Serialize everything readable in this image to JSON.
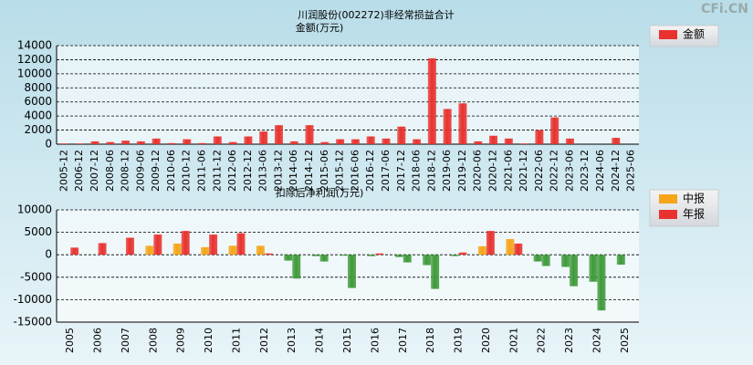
{
  "watermark": "CFi.CN",
  "chart_data": [
    {
      "type": "bar",
      "title": "川润股份(002272)非经常损益合计",
      "y_label": "金额(万元)",
      "categories": [
        "2005-12",
        "2006-12",
        "2007-12",
        "2008-06",
        "2008-12",
        "2009-06",
        "2009-12",
        "2010-06",
        "2010-12",
        "2011-06",
        "2011-12",
        "2012-06",
        "2012-12",
        "2013-06",
        "2013-12",
        "2014-06",
        "2014-12",
        "2015-06",
        "2015-12",
        "2016-06",
        "2016-12",
        "2017-06",
        "2017-12",
        "2018-06",
        "2018-12",
        "2019-06",
        "2019-12",
        "2020-06",
        "2020-12",
        "2021-06",
        "2021-12",
        "2022-06",
        "2022-12",
        "2023-06",
        "2023-12",
        "2024-06",
        "2024-12",
        "2025-06"
      ],
      "series": [
        {
          "name": "金额",
          "color": "#e8322e",
          "values": [
            100,
            100,
            400,
            300,
            500,
            400,
            800,
            150,
            700,
            150,
            1100,
            300,
            1100,
            1800,
            2700,
            400,
            2700,
            300,
            700,
            700,
            1100,
            800,
            2500,
            700,
            12200,
            5000,
            5800,
            400,
            1200,
            800,
            100,
            2000,
            3800,
            800,
            0,
            0,
            900,
            0
          ]
        }
      ],
      "ylim": [
        0,
        14000
      ],
      "yticks": [
        0,
        2000,
        4000,
        6000,
        8000,
        10000,
        12000,
        14000
      ],
      "grid": true,
      "legend": "right"
    },
    {
      "type": "bar",
      "title": "扣除后净利润(万元)",
      "categories": [
        "2005",
        "2006",
        "2007",
        "2008",
        "2009",
        "2010",
        "2011",
        "2012",
        "2013",
        "2014",
        "2015",
        "2016",
        "2017",
        "2018",
        "2019",
        "2020",
        "2021",
        "2022",
        "2023",
        "2024",
        "2025"
      ],
      "series": [
        {
          "name": "中报",
          "color": "#f5a517",
          "values": [
            null,
            null,
            null,
            2000,
            2500,
            1700,
            2000,
            2000,
            -1300,
            -300,
            -200,
            -300,
            -500,
            -2300,
            -300,
            1900,
            3500,
            -1500,
            -2700,
            -6000,
            -2200
          ]
        },
        {
          "name": "年报",
          "color": "#e8322e",
          "values": [
            1600,
            2600,
            3800,
            4500,
            5300,
            4500,
            4800,
            300,
            -5300,
            -1500,
            -7400,
            300,
            -1700,
            -7600,
            500,
            5300,
            2500,
            -2500,
            -7000,
            -12400,
            null
          ]
        }
      ],
      "negative_color": "#3f9a3a",
      "ylim": [
        -15000,
        10000
      ],
      "yticks": [
        -15000,
        -10000,
        -5000,
        0,
        5000,
        10000
      ],
      "grid": true,
      "legend": "right"
    }
  ]
}
